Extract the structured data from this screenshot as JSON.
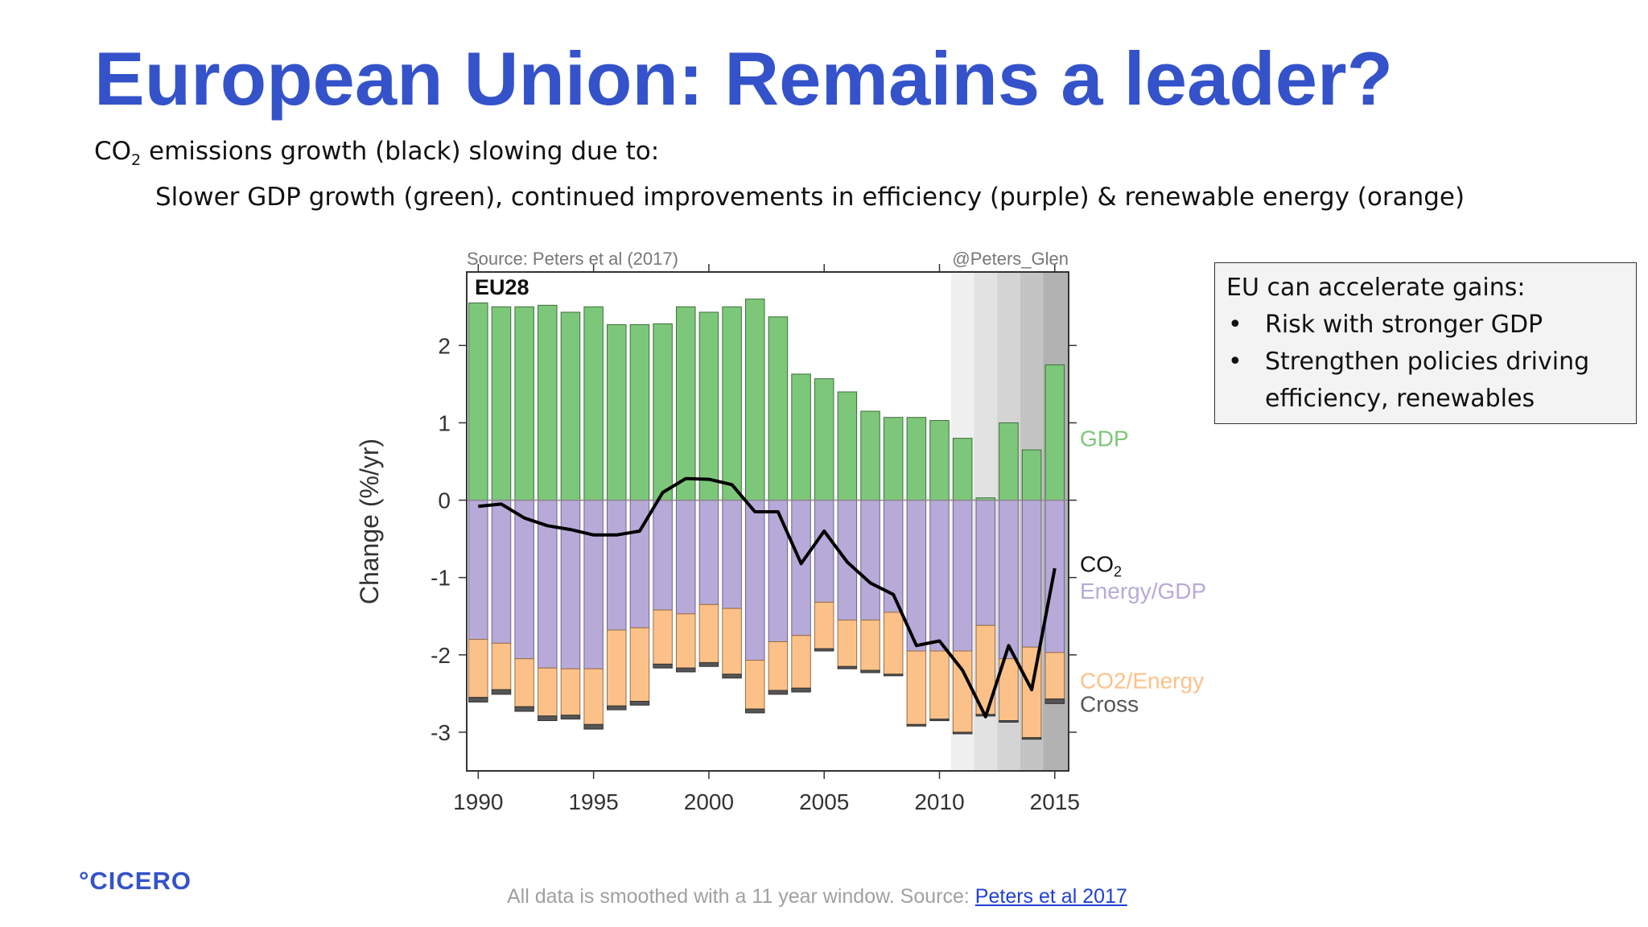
{
  "slide": {
    "title": "European Union: Remains a leader?",
    "subtitle_line1_pre": "CO",
    "subtitle_line1_sub": "2",
    "subtitle_line1_post": " emissions growth (black) slowing due to:",
    "subtitle_line2": "Slower GDP growth (green), continued improvements in efficiency (purple) & renewable energy (orange)"
  },
  "callout": {
    "heading": "EU can accelerate gains:",
    "items": [
      "Risk with stronger GDP",
      "Strengthen policies driving efficiency, renewables"
    ]
  },
  "footer": {
    "logo": "°CICERO",
    "note": "All data is smoothed with a 11 year window. Source: ",
    "link_text": "Peters et al 2017"
  },
  "colors": {
    "title": "#3452c9",
    "gdp": "#7dc77a",
    "energy_gdp": "#b7aad8",
    "co2_energy": "#fcc189",
    "cross": "#555555",
    "co2_line": "#000000"
  },
  "chart_data": {
    "type": "bar",
    "source_note": "Source: Peters et al (2017)",
    "handle": "@Peters_Glen",
    "region_label": "EU28",
    "ylabel": "Change (%/yr)",
    "ylim": [
      -3.5,
      2.95
    ],
    "xlim": [
      1989.5,
      2015.6
    ],
    "yticks": [
      -3,
      -2,
      -1,
      0,
      1,
      2
    ],
    "xticks": [
      1990,
      1995,
      2000,
      2005,
      2010,
      2015
    ],
    "legend": {
      "gdp": "GDP",
      "co2": "CO2",
      "energy_gdp": "Energy/GDP",
      "co2_energy": "CO2/Energy",
      "cross": "Cross"
    },
    "years": [
      1990,
      1991,
      1992,
      1993,
      1994,
      1995,
      1996,
      1997,
      1998,
      1999,
      2000,
      2001,
      2002,
      2003,
      2004,
      2005,
      2006,
      2007,
      2008,
      2009,
      2010,
      2011,
      2012,
      2013,
      2014,
      2015
    ],
    "series": [
      {
        "name": "GDP",
        "values": [
          2.55,
          2.5,
          2.5,
          2.52,
          2.43,
          2.5,
          2.27,
          2.27,
          2.28,
          2.5,
          2.43,
          2.5,
          2.6,
          2.37,
          1.63,
          1.57,
          1.4,
          1.15,
          1.07,
          1.07,
          1.03,
          0.8,
          0.03,
          1.0,
          0.65,
          1.75
        ]
      },
      {
        "name": "Energy/GDP",
        "values": [
          -1.8,
          -1.85,
          -2.05,
          -2.17,
          -2.18,
          -2.18,
          -1.68,
          -1.65,
          -1.42,
          -1.47,
          -1.35,
          -1.4,
          -2.07,
          -1.83,
          -1.75,
          -1.32,
          -1.55,
          -1.55,
          -1.45,
          -1.95,
          -1.95,
          -1.95,
          -1.62,
          -2.05,
          -1.9,
          -1.97
        ]
      },
      {
        "name": "CO2/Energy",
        "values": [
          -0.75,
          -0.6,
          -0.62,
          -0.62,
          -0.6,
          -0.72,
          -0.98,
          -0.95,
          -0.7,
          -0.7,
          -0.75,
          -0.85,
          -0.63,
          -0.63,
          -0.68,
          -0.6,
          -0.6,
          -0.65,
          -0.8,
          -0.95,
          -0.88,
          -1.05,
          -1.15,
          -0.8,
          -1.17,
          -0.6
        ]
      },
      {
        "name": "Cross",
        "values": [
          -0.06,
          -0.06,
          -0.06,
          -0.06,
          -0.05,
          -0.06,
          -0.05,
          -0.05,
          -0.05,
          -0.05,
          -0.05,
          -0.05,
          -0.05,
          -0.05,
          -0.05,
          -0.03,
          -0.03,
          -0.03,
          -0.02,
          -0.02,
          -0.02,
          -0.02,
          -0.01,
          -0.02,
          -0.01,
          -0.06
        ]
      },
      {
        "name": "CO2",
        "values": [
          -0.08,
          -0.05,
          -0.23,
          -0.33,
          -0.38,
          -0.45,
          -0.45,
          -0.4,
          0.1,
          0.28,
          0.27,
          0.2,
          -0.15,
          -0.15,
          -0.82,
          -0.4,
          -0.8,
          -1.07,
          -1.22,
          -1.88,
          -1.82,
          -2.2,
          -2.8,
          -1.88,
          -2.45,
          -0.88
        ]
      }
    ],
    "shading": [
      {
        "from": 2010.5,
        "to": 2011.5,
        "color": "#f0f0f0"
      },
      {
        "from": 2011.5,
        "to": 2012.5,
        "color": "#e2e2e2"
      },
      {
        "from": 2012.5,
        "to": 2013.5,
        "color": "#d4d4d4"
      },
      {
        "from": 2013.5,
        "to": 2014.5,
        "color": "#c4c4c4"
      },
      {
        "from": 2014.5,
        "to": 2015.6,
        "color": "#b2b2b2"
      }
    ]
  }
}
